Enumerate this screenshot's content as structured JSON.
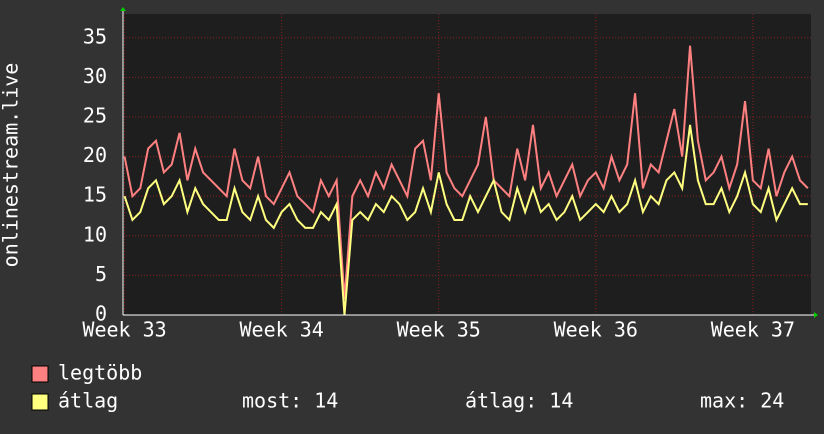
{
  "chart_data": {
    "type": "line",
    "ylabel": "onlinestream.live",
    "x": [
      33,
      33.05,
      33.1,
      33.15,
      33.2,
      33.25,
      33.3,
      33.35,
      33.4,
      33.45,
      33.5,
      33.55,
      33.6,
      33.65,
      33.7,
      33.75,
      33.8,
      33.85,
      33.9,
      33.95,
      34,
      34.05,
      34.1,
      34.15,
      34.2,
      34.25,
      34.3,
      34.35,
      34.4,
      34.45,
      34.5,
      34.55,
      34.6,
      34.65,
      34.7,
      34.75,
      34.8,
      34.85,
      34.9,
      34.95,
      35,
      35.05,
      35.1,
      35.15,
      35.2,
      35.25,
      35.3,
      35.35,
      35.4,
      35.45,
      35.5,
      35.55,
      35.6,
      35.65,
      35.7,
      35.75,
      35.8,
      35.85,
      35.9,
      35.95,
      36,
      36.05,
      36.1,
      36.15,
      36.2,
      36.25,
      36.3,
      36.35,
      36.4,
      36.45,
      36.5,
      36.55,
      36.6,
      36.65,
      36.7,
      36.75,
      36.8,
      36.85,
      36.9,
      36.95,
      37,
      37.05,
      37.1,
      37.15,
      37.2,
      37.25,
      37.3,
      37.35
    ],
    "series": [
      {
        "name": "legtöbb",
        "color": "#ff8080",
        "values": [
          20,
          15,
          16,
          21,
          22,
          18,
          19,
          23,
          17,
          21,
          18,
          17,
          16,
          15,
          21,
          17,
          16,
          20,
          15,
          14,
          16,
          18,
          15,
          14,
          13,
          17,
          15,
          17,
          2,
          15,
          17,
          15,
          18,
          16,
          19,
          17,
          15,
          21,
          22,
          17,
          28,
          18,
          16,
          15,
          17,
          19,
          25,
          17,
          16,
          15,
          21,
          17,
          24,
          16,
          18,
          15,
          17,
          19,
          15,
          17,
          18,
          16,
          20,
          17,
          19,
          28,
          16,
          19,
          18,
          22,
          26,
          20,
          34,
          22,
          17,
          18,
          20,
          16,
          19,
          27,
          17,
          16,
          21,
          15,
          18,
          20,
          17,
          16
        ]
      },
      {
        "name": "átlag",
        "color": "#ffff80",
        "values": [
          15,
          12,
          13,
          16,
          17,
          14,
          15,
          17,
          13,
          16,
          14,
          13,
          12,
          12,
          16,
          13,
          12,
          15,
          12,
          11,
          13,
          14,
          12,
          11,
          11,
          13,
          12,
          14,
          0,
          12,
          13,
          12,
          14,
          13,
          15,
          14,
          12,
          13,
          16,
          13,
          18,
          14,
          12,
          12,
          15,
          13,
          15,
          17,
          13,
          12,
          16,
          13,
          16,
          13,
          14,
          12,
          13,
          15,
          12,
          13,
          14,
          13,
          15,
          13,
          14,
          17,
          13,
          15,
          14,
          17,
          18,
          16,
          24,
          17,
          14,
          14,
          16,
          13,
          15,
          18,
          14,
          13,
          16,
          12,
          14,
          16,
          14,
          14
        ]
      }
    ],
    "stats": [
      "most: 14",
      "átlag: 14",
      "max: 24"
    ],
    "xlim": [
      32.99,
      37.37
    ],
    "xticks": [
      {
        "value": 33,
        "label": "Week 33"
      },
      {
        "value": 34,
        "label": "Week 34"
      },
      {
        "value": 35,
        "label": "Week 35"
      },
      {
        "value": 36,
        "label": "Week 36"
      },
      {
        "value": 37,
        "label": "Week 37"
      }
    ],
    "ylim": [
      0,
      38
    ],
    "yticks": [
      0,
      5,
      10,
      15,
      20,
      25,
      30,
      35
    ],
    "grid": true
  }
}
